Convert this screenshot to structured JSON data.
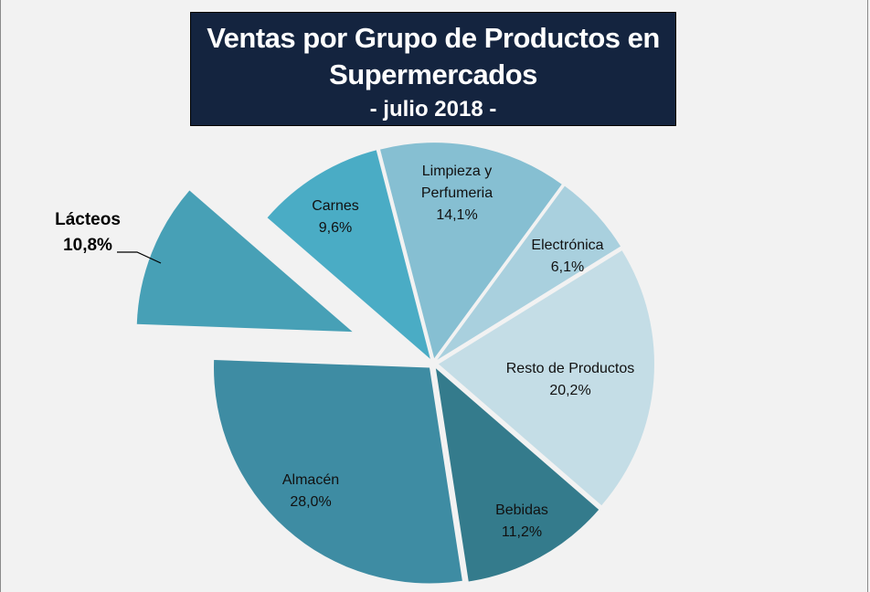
{
  "chart_data": {
    "type": "pie",
    "title": "Ventas por Grupo de Productos en Supermercados",
    "subtitle": "- julio 2018 -",
    "slices": [
      {
        "label": "Limpieza y Perfumeria",
        "value": 14.1,
        "display": "14,1%",
        "color": "#86bfd2",
        "exploded": false
      },
      {
        "label": "Electrónica",
        "value": 6.1,
        "display": "6,1%",
        "color": "#a9d0de",
        "exploded": false
      },
      {
        "label": "Resto de Productos",
        "value": 20.2,
        "display": "20,2%",
        "color": "#c4dde6",
        "exploded": false
      },
      {
        "label": "Bebidas",
        "value": 11.2,
        "display": "11,2%",
        "color": "#347b8c",
        "exploded": false
      },
      {
        "label": "Almacén",
        "value": 28.0,
        "display": "28,0%",
        "color": "#3e8ca3",
        "exploded": false
      },
      {
        "label": "Lácteos",
        "value": 10.8,
        "display": "10,8%",
        "color": "#47a0b6",
        "exploded": true
      },
      {
        "label": "Carnes",
        "value": 9.6,
        "display": "9,6%",
        "color": "#4aacc5",
        "exploded": false
      }
    ],
    "start_angle_deg": -14.5,
    "direction": "clockwise",
    "legend": "none"
  },
  "title_box_color": "#14243f"
}
